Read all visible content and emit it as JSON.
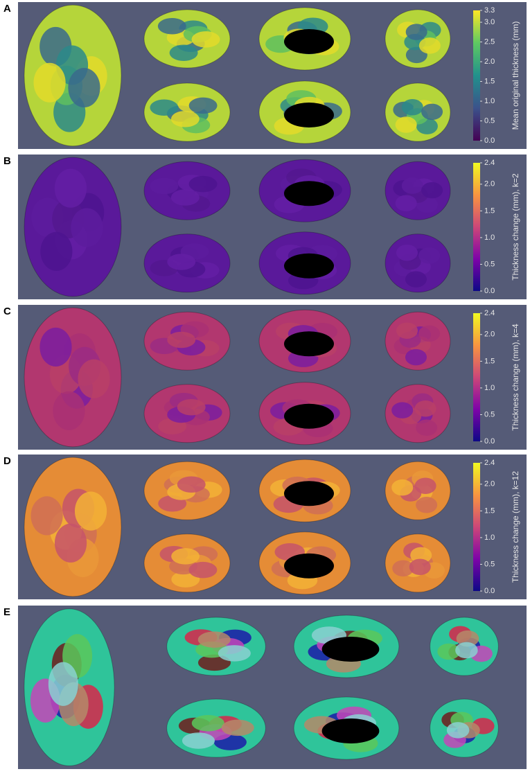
{
  "panels": [
    {
      "letter": "A",
      "colormap": "viridis",
      "colorbar": {
        "title": "Mean original thickness (mm)",
        "lim": [
          0,
          3.3
        ],
        "ticks": [
          {
            "value": 0,
            "label": "0.0"
          },
          0.5,
          {
            "value": 1,
            "label": "1.0"
          },
          1.5,
          {
            "value": 2,
            "label": "2.0"
          },
          2.5,
          {
            "value": 3,
            "label": "3.0"
          },
          3.3
        ]
      }
    },
    {
      "letter": "B",
      "colormap": "plasma",
      "colorbar": {
        "title": "Thickness change (mm), k=2",
        "lim": [
          0,
          2.4
        ],
        "ticks": [
          {
            "value": 0,
            "label": "0.0"
          },
          0.5,
          {
            "value": 1,
            "label": "1.0"
          },
          1.5,
          {
            "value": 2,
            "label": "2.0"
          },
          2.4
        ]
      }
    },
    {
      "letter": "C",
      "colormap": "plasma",
      "colorbar": {
        "title": "Thickness change (mm), k=4",
        "lim": [
          0,
          2.4
        ],
        "ticks": [
          {
            "value": 0,
            "label": "0.0"
          },
          0.5,
          {
            "value": 1,
            "label": "1.0"
          },
          1.5,
          {
            "value": 2,
            "label": "2.0"
          },
          2.4
        ]
      }
    },
    {
      "letter": "D",
      "colormap": "plasma",
      "colorbar": {
        "title": "Thickness change (mm), k=12",
        "lim": [
          0,
          2.4
        ],
        "ticks": [
          {
            "value": 0,
            "label": "0.0"
          },
          0.5,
          {
            "value": 1,
            "label": "1.0"
          },
          1.5,
          {
            "value": 2,
            "label": "2.0"
          },
          2.4
        ]
      }
    },
    {
      "letter": "E"
    }
  ]
}
